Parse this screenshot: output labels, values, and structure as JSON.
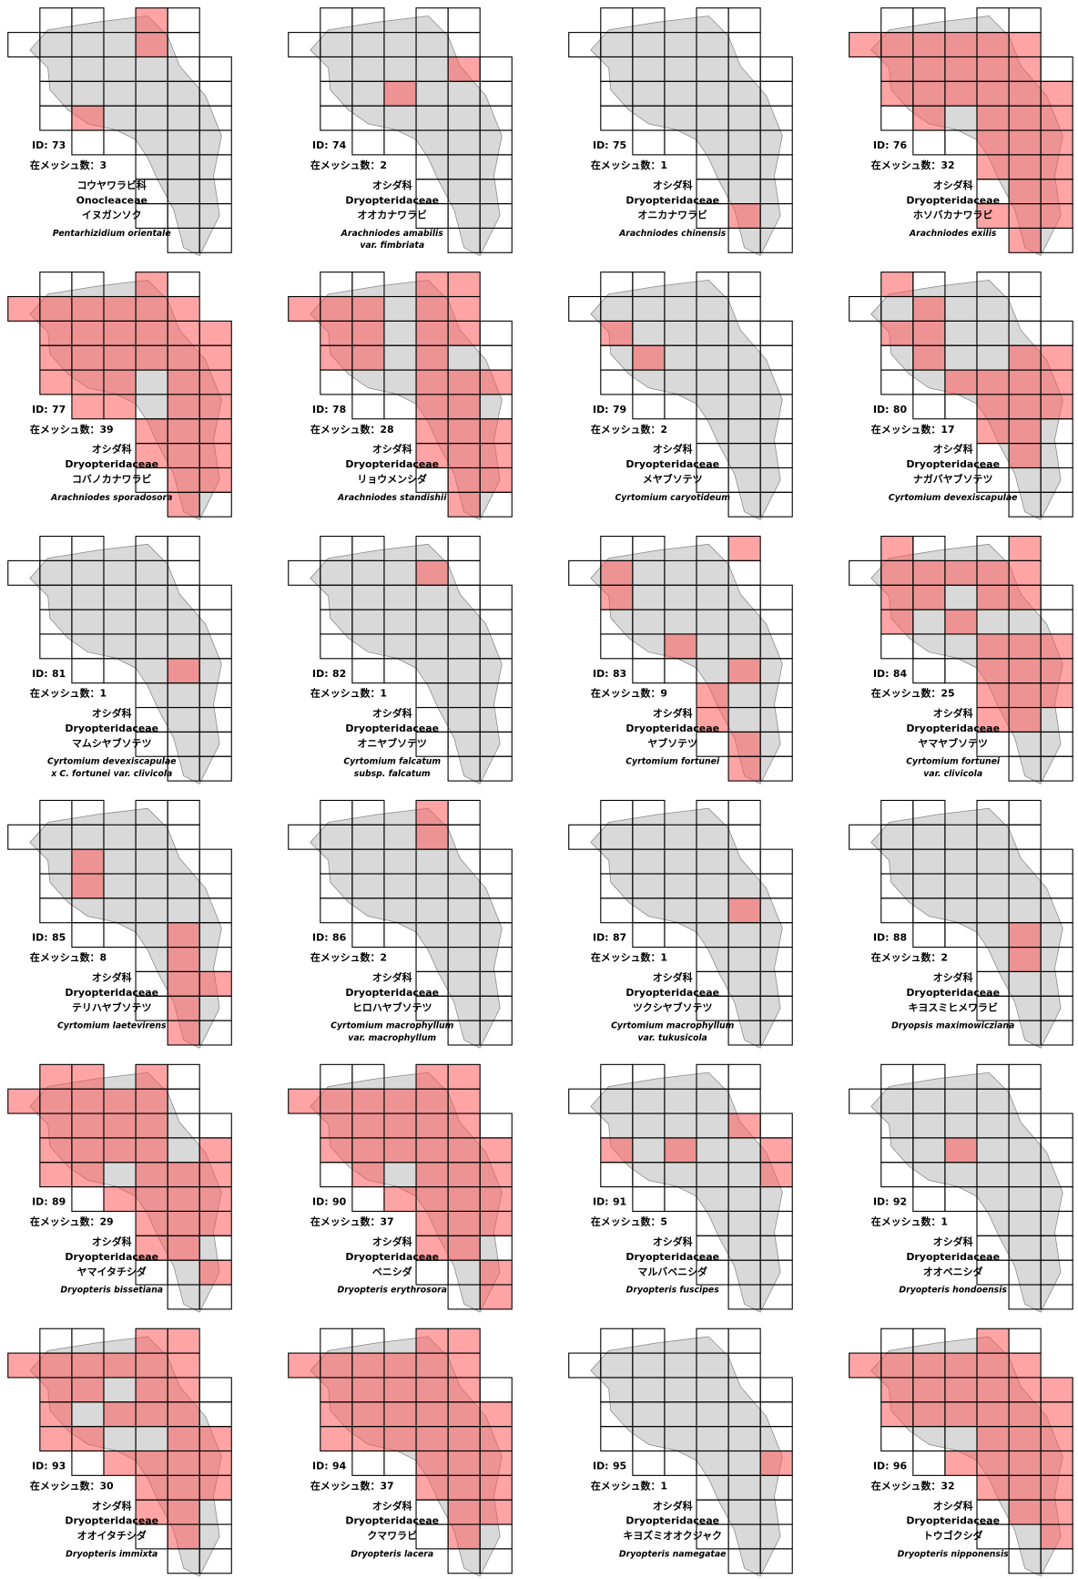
{
  "id_label": "ID:",
  "mesh_label": "在メッシュ数：",
  "panels": [
    {
      "id": 73,
      "mesh_count": 3,
      "family_ja": "コウヤワラビ科",
      "family": "Onocleaceae",
      "name_ja": "イヌガンソク",
      "scientific_name": [
        "Pentarhizidium orientale"
      ]
    },
    {
      "id": 74,
      "mesh_count": 2,
      "family_ja": "オシダ科",
      "family": "Dryopteridaceae",
      "name_ja": "オオカナワラビ",
      "scientific_name": [
        "Arachniodes amabilis",
        "var. fimbriata"
      ]
    },
    {
      "id": 75,
      "mesh_count": 1,
      "family_ja": "オシダ科",
      "family": "Dryopteridaceae",
      "name_ja": "オニカナワラビ",
      "scientific_name": [
        "Arachniodes chinensis"
      ]
    },
    {
      "id": 76,
      "mesh_count": 32,
      "family_ja": "オシダ科",
      "family": "Dryopteridaceae",
      "name_ja": "ホソバカナワラビ",
      "scientific_name": [
        "Arachniodes exilis"
      ]
    },
    {
      "id": 77,
      "mesh_count": 39,
      "family_ja": "オシダ科",
      "family": "Dryopteridaceae",
      "name_ja": "コバノカナワラビ",
      "scientific_name": [
        "Arachniodes sporadosora"
      ]
    },
    {
      "id": 78,
      "mesh_count": 28,
      "family_ja": "オシダ科",
      "family": "Dryopteridaceae",
      "name_ja": "リョウメンシダ",
      "scientific_name": [
        "Arachniodes standishii"
      ]
    },
    {
      "id": 79,
      "mesh_count": 2,
      "family_ja": "オシダ科",
      "family": "Dryopteridaceae",
      "name_ja": "メヤブソテツ",
      "scientific_name": [
        "Cyrtomium caryotideum"
      ]
    },
    {
      "id": 80,
      "mesh_count": 17,
      "family_ja": "オシダ科",
      "family": "Dryopteridaceae",
      "name_ja": "ナガバヤブソテツ",
      "scientific_name": [
        "Cyrtomium devexiscapulae"
      ]
    },
    {
      "id": 81,
      "mesh_count": 1,
      "family_ja": "オシダ科",
      "family": "Dryopteridaceae",
      "name_ja": "マムシヤブソテツ",
      "scientific_name": [
        "Cyrtomium devexiscapulae",
        "x C. fortunei  var. clivicola"
      ]
    },
    {
      "id": 82,
      "mesh_count": 1,
      "family_ja": "オシダ科",
      "family": "Dryopteridaceae",
      "name_ja": "オニヤブソテツ",
      "scientific_name": [
        "Cyrtomium falcatum",
        "subsp. falcatum"
      ]
    },
    {
      "id": 83,
      "mesh_count": 9,
      "family_ja": "オシダ科",
      "family": "Dryopteridaceae",
      "name_ja": "ヤブソテツ",
      "scientific_name": [
        "Cyrtomium fortunei"
      ]
    },
    {
      "id": 84,
      "mesh_count": 25,
      "family_ja": "オシダ科",
      "family": "Dryopteridaceae",
      "name_ja": "ヤマヤブソテツ",
      "scientific_name": [
        "Cyrtomium fortunei",
        "var. clivicola"
      ]
    },
    {
      "id": 85,
      "mesh_count": 8,
      "family_ja": "オシダ科",
      "family": "Dryopteridaceae",
      "name_ja": "テリハヤブソテツ",
      "scientific_name": [
        "Cyrtomium laetevirens"
      ]
    },
    {
      "id": 86,
      "mesh_count": 2,
      "family_ja": "オシダ科",
      "family": "Dryopteridaceae",
      "name_ja": "ヒロハヤブソテツ",
      "scientific_name": [
        "Cyrtomium macrophyllum",
        "var. macrophyllum"
      ]
    },
    {
      "id": 87,
      "mesh_count": 1,
      "family_ja": "オシダ科",
      "family": "Dryopteridaceae",
      "name_ja": "ツクシヤブソテツ",
      "scientific_name": [
        "Cyrtomium macrophyllum",
        "var. tukusicola"
      ]
    },
    {
      "id": 88,
      "mesh_count": 2,
      "family_ja": "オシダ科",
      "family": "Dryopteridaceae",
      "name_ja": "キヨスミヒメワラビ",
      "scientific_name": [
        "Dryopsis maximowicziana"
      ]
    },
    {
      "id": 89,
      "mesh_count": 29,
      "family_ja": "オシダ科",
      "family": "Dryopteridaceae",
      "name_ja": "ヤマイタチシダ",
      "scientific_name": [
        "Dryopteris bissetiana"
      ]
    },
    {
      "id": 90,
      "mesh_count": 37,
      "family_ja": "オシダ科",
      "family": "Dryopteridaceae",
      "name_ja": "ベニシダ",
      "scientific_name": [
        "Dryopteris erythrosora"
      ]
    },
    {
      "id": 91,
      "mesh_count": 5,
      "family_ja": "オシダ科",
      "family": "Dryopteridaceae",
      "name_ja": "マルバベニシダ",
      "scientific_name": [
        "Dryopteris fuscipes"
      ]
    },
    {
      "id": 92,
      "mesh_count": 1,
      "family_ja": "オシダ科",
      "family": "Dryopteridaceae",
      "name_ja": "オオベニシダ",
      "scientific_name": [
        "Dryopteris hondoensis"
      ]
    },
    {
      "id": 93,
      "mesh_count": 30,
      "family_ja": "オシダ科",
      "family": "Dryopteridaceae",
      "name_ja": "オオイタチシダ",
      "scientific_name": [
        "Dryopteris immixta"
      ]
    },
    {
      "id": 94,
      "mesh_count": 37,
      "family_ja": "オシダ科",
      "family": "Dryopteridaceae",
      "name_ja": "クマワラビ",
      "scientific_name": [
        "Dryopteris lacera"
      ]
    },
    {
      "id": 95,
      "mesh_count": 1,
      "family_ja": "オシダ科",
      "family": "Dryopteridaceae",
      "name_ja": "キヨズミオオクジャク",
      "scientific_name": [
        "Dryopteris namegatae"
      ]
    },
    {
      "id": 96,
      "mesh_count": 32,
      "family_ja": "オシダ科",
      "family": "Dryopteridaceae",
      "name_ja": "トウゴクシダ",
      "scientific_name": [
        "Dryopteris nipponensis"
      ]
    }
  ]
}
